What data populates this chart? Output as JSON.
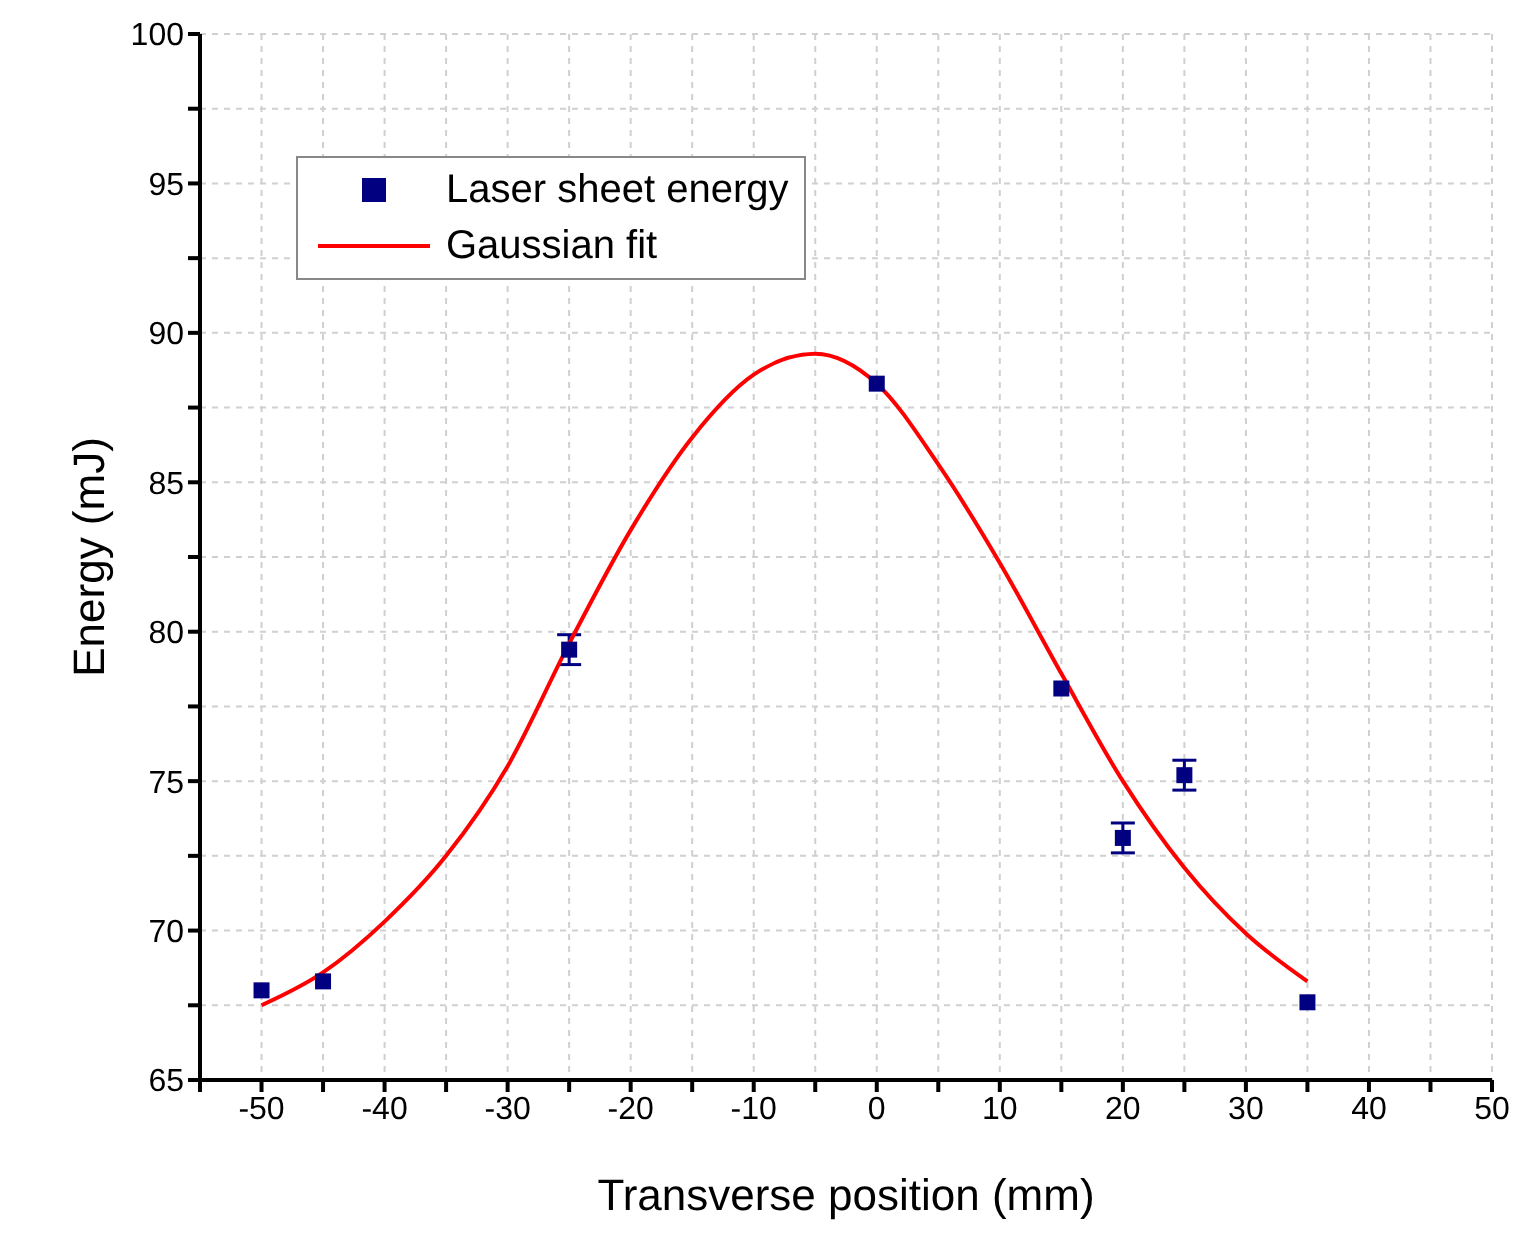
{
  "chart_data": {
    "type": "scatter",
    "xlabel": "Transverse position (mm)",
    "ylabel": "Energy (mJ)",
    "xlim": [
      -55,
      50
    ],
    "ylim": [
      65,
      100
    ],
    "xticks": [
      {
        "value": -55,
        "label": null
      },
      -50,
      {
        "value": -45,
        "label": null
      },
      -40,
      {
        "value": -35,
        "label": null
      },
      -30,
      {
        "value": -25,
        "label": null
      },
      -20,
      {
        "value": -15,
        "label": null
      },
      -10,
      {
        "value": -5,
        "label": null
      },
      0,
      {
        "value": 5,
        "label": null
      },
      10,
      {
        "value": 15,
        "label": null
      },
      20,
      {
        "value": 25,
        "label": null
      },
      30,
      {
        "value": 35,
        "label": null
      },
      40,
      {
        "value": 45,
        "label": null
      },
      50
    ],
    "yticks": [
      65,
      {
        "value": 67.5,
        "label": null
      },
      70,
      {
        "value": 72.5,
        "label": null
      },
      75,
      {
        "value": 77.5,
        "label": null
      },
      80,
      {
        "value": 82.5,
        "label": null
      },
      85,
      {
        "value": 87.5,
        "label": null
      },
      90,
      {
        "value": 92.5,
        "label": null
      },
      95,
      {
        "value": 97.5,
        "label": null
      },
      100
    ],
    "grid": true,
    "legend": "top left",
    "series": [
      {
        "name": "Laser sheet energy",
        "marker": "square",
        "color": "#000080",
        "x": [
          -50,
          -45,
          -25,
          0,
          15,
          20,
          25,
          35
        ],
        "values": [
          68.0,
          68.3,
          79.4,
          88.3,
          78.1,
          73.1,
          75.2,
          67.6
        ],
        "errors": [
          null,
          null,
          0.5,
          null,
          null,
          0.5,
          0.5,
          null
        ]
      },
      {
        "name": "Gaussian fit",
        "type": "line",
        "marker": "none",
        "color": "#ff0000",
        "line_style": "solid",
        "x": [
          -50,
          -45,
          -40,
          -35,
          -30,
          -25,
          -20,
          -15,
          -10,
          -5,
          0,
          5,
          10,
          15,
          20,
          25,
          30,
          35
        ],
        "values": [
          67.5,
          68.6,
          70.3,
          72.5,
          75.5,
          79.6,
          83.4,
          86.5,
          88.6,
          89.3,
          88.3,
          85.6,
          82.3,
          78.6,
          75.0,
          72.1,
          69.9,
          68.3
        ]
      }
    ]
  }
}
